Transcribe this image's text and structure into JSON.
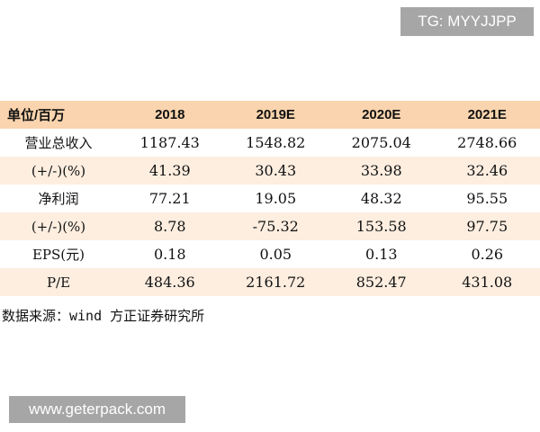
{
  "watermark_top": "TG: MYYJJPP",
  "table": {
    "header": [
      "单位/百万",
      "2018",
      "2019E",
      "2020E",
      "2021E"
    ],
    "rows": [
      [
        "营业总收入",
        "1187.43",
        "1548.82",
        "2075.04",
        "2748.66"
      ],
      [
        "(+/-)(%)",
        "41.39",
        "30.43",
        "33.98",
        "32.46"
      ],
      [
        "净利润",
        "77.21",
        "19.05",
        "48.32",
        "95.55"
      ],
      [
        "(+/-)(%)",
        "8.78",
        "-75.32",
        "153.58",
        "97.75"
      ],
      [
        "EPS(元)",
        "0.18",
        "0.05",
        "0.13",
        "0.26"
      ],
      [
        "P/E",
        "484.36",
        "2161.72",
        "852.47",
        "431.08"
      ]
    ]
  },
  "source": "数据来源：wind 方正证券研究所",
  "watermark_bottom": "www.geterpack.com"
}
